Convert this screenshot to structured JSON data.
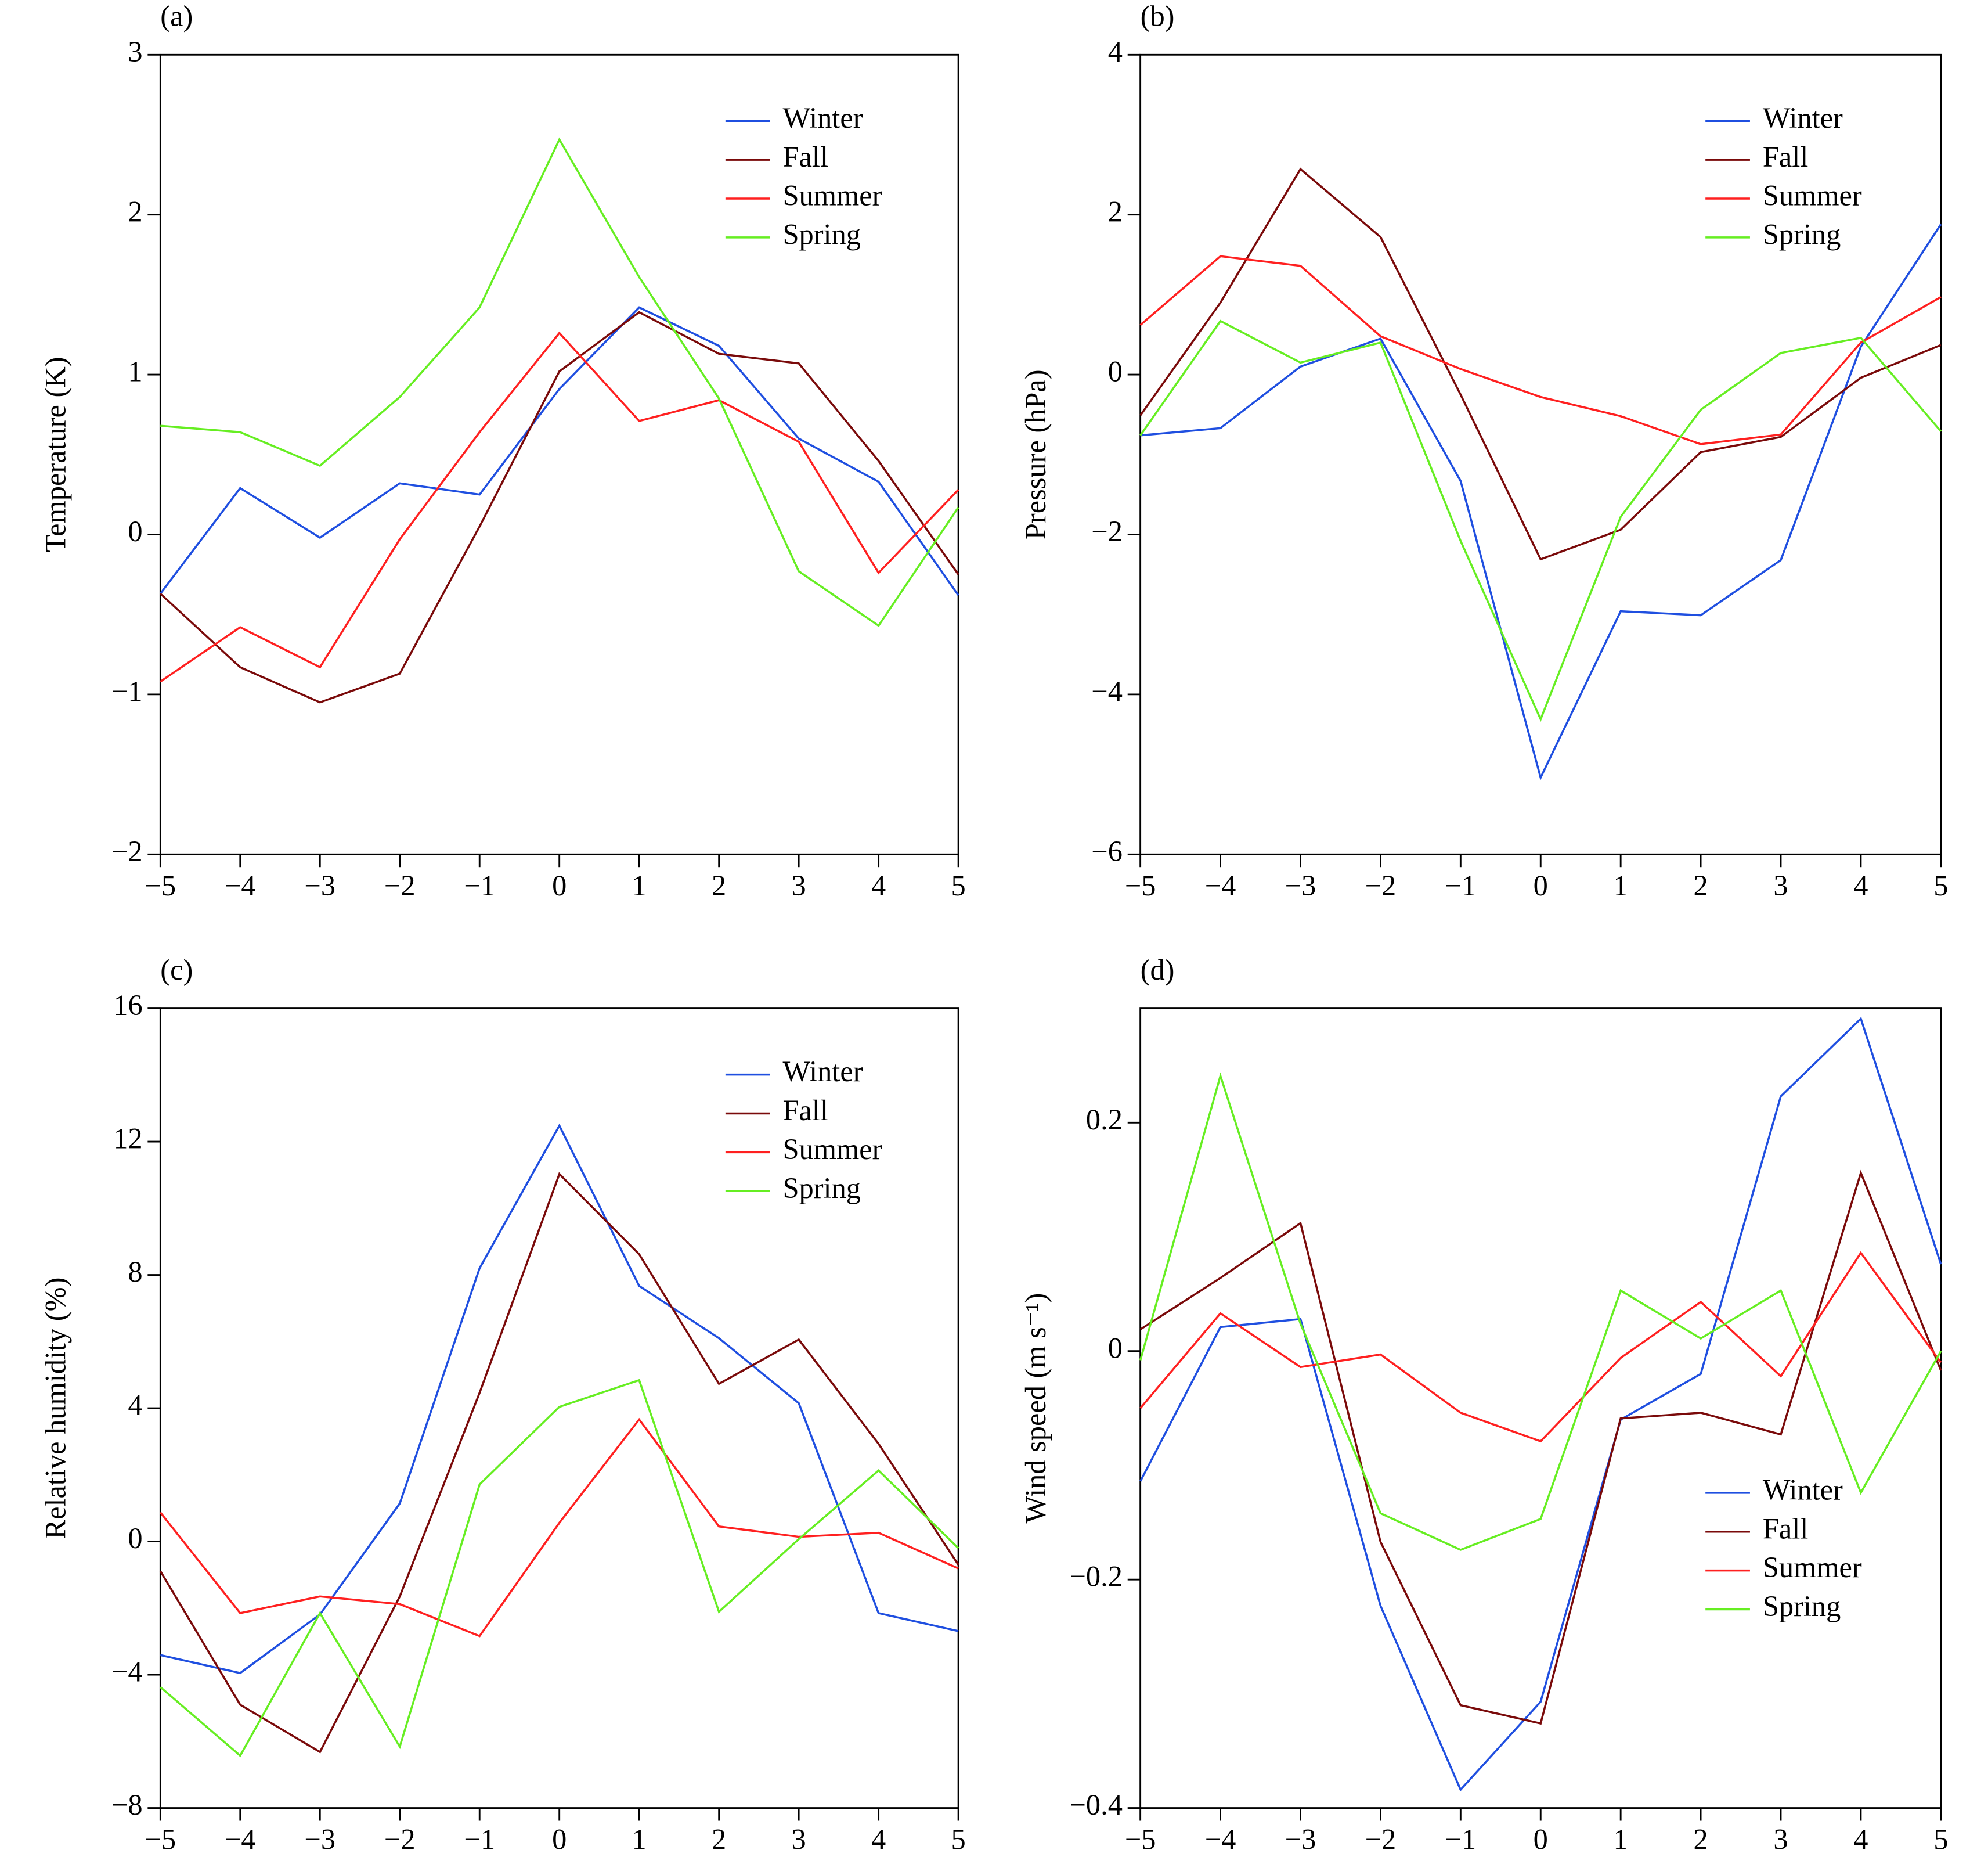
{
  "chart_data": [
    {
      "type": "line",
      "title": "(a)",
      "ylabel": "Temperature (K)",
      "legend": "upper right",
      "x": [
        -5,
        -4,
        -3,
        -2,
        -1,
        0,
        1,
        2,
        3,
        4,
        5
      ],
      "xlim": [
        -5,
        5
      ],
      "xticks": [
        {
          "value": -5,
          "label": "−5"
        },
        {
          "value": -4,
          "label": "−4"
        },
        {
          "value": -3,
          "label": "−3"
        },
        {
          "value": -2,
          "label": "−2"
        },
        {
          "value": -1,
          "label": "−1"
        },
        0,
        1,
        2,
        3,
        4,
        5
      ],
      "ylim": [
        -2,
        3
      ],
      "yticks": [
        {
          "value": -2,
          "label": "−2"
        },
        {
          "value": -1,
          "label": "−1"
        },
        0,
        1,
        2,
        3
      ],
      "series": [
        {
          "name": "Winter",
          "color": "#1f4fe0",
          "values": [
            -0.37,
            0.29,
            -0.02,
            0.32,
            0.25,
            0.91,
            1.42,
            1.18,
            0.6,
            0.33,
            -0.38
          ]
        },
        {
          "name": "Fall",
          "color": "#7a0a0a",
          "values": [
            -0.37,
            -0.83,
            -1.05,
            -0.87,
            0.05,
            1.02,
            1.39,
            1.13,
            1.07,
            0.46,
            -0.25
          ]
        },
        {
          "name": "Summer",
          "color": "#ff2020",
          "values": [
            -0.92,
            -0.58,
            -0.83,
            -0.03,
            0.64,
            1.26,
            0.71,
            0.84,
            0.58,
            -0.24,
            0.28
          ]
        },
        {
          "name": "Spring",
          "color": "#66ee22",
          "values": [
            0.68,
            0.64,
            0.43,
            0.86,
            1.42,
            2.47,
            1.61,
            0.85,
            -0.23,
            -0.57,
            0.17
          ]
        }
      ]
    },
    {
      "type": "line",
      "title": "(b)",
      "ylabel": "Pressure (hPa)",
      "legend": "upper right",
      "x": [
        -5,
        -4,
        -3,
        -2,
        -1,
        0,
        1,
        2,
        3,
        4,
        5
      ],
      "xlim": [
        -5,
        5
      ],
      "xticks": [
        {
          "value": -5,
          "label": "−5"
        },
        {
          "value": -4,
          "label": "−4"
        },
        {
          "value": -3,
          "label": "−3"
        },
        {
          "value": -2,
          "label": "−2"
        },
        {
          "value": -1,
          "label": "−1"
        },
        0,
        1,
        2,
        3,
        4,
        5
      ],
      "ylim": [
        -6,
        4
      ],
      "yticks": [
        {
          "value": -6,
          "label": "−6"
        },
        {
          "value": -4,
          "label": "−4"
        },
        {
          "value": -2,
          "label": "−2"
        },
        0,
        2,
        4
      ],
      "series": [
        {
          "name": "Winter",
          "color": "#1f4fe0",
          "values": [
            -0.76,
            -0.67,
            0.1,
            0.45,
            -1.33,
            -5.04,
            -2.96,
            -3.01,
            -2.32,
            0.35,
            1.88
          ]
        },
        {
          "name": "Fall",
          "color": "#7a0a0a",
          "values": [
            -0.51,
            0.9,
            2.57,
            1.72,
            -0.25,
            -2.31,
            -1.94,
            -0.97,
            -0.78,
            -0.04,
            0.37
          ]
        },
        {
          "name": "Summer",
          "color": "#ff2020",
          "values": [
            0.62,
            1.48,
            1.36,
            0.48,
            0.07,
            -0.28,
            -0.52,
            -0.87,
            -0.75,
            0.4,
            0.97
          ]
        },
        {
          "name": "Spring",
          "color": "#66ee22",
          "values": [
            -0.76,
            0.67,
            0.15,
            0.4,
            -2.08,
            -4.31,
            -1.78,
            -0.44,
            0.27,
            0.46,
            -0.71
          ]
        }
      ]
    },
    {
      "type": "line",
      "title": "(c)",
      "ylabel": "Relative humidity (%)",
      "legend": "upper right",
      "x": [
        -5,
        -4,
        -3,
        -2,
        -1,
        0,
        1,
        2,
        3,
        4,
        5
      ],
      "xlim": [
        -5,
        5
      ],
      "xticks": [
        {
          "value": -5,
          "label": "−5"
        },
        {
          "value": -4,
          "label": "−4"
        },
        {
          "value": -3,
          "label": "−3"
        },
        {
          "value": -2,
          "label": "−2"
        },
        {
          "value": -1,
          "label": "−1"
        },
        0,
        1,
        2,
        3,
        4,
        5
      ],
      "ylim": [
        -8,
        16
      ],
      "yticks": [
        {
          "value": -8,
          "label": "−8"
        },
        {
          "value": -4,
          "label": "−4"
        },
        0,
        4,
        8,
        12,
        16
      ],
      "series": [
        {
          "name": "Winter",
          "color": "#1f4fe0",
          "values": [
            -3.41,
            -3.95,
            -2.19,
            1.14,
            8.2,
            12.48,
            7.67,
            6.1,
            4.15,
            -2.15,
            -2.69
          ]
        },
        {
          "name": "Fall",
          "color": "#7a0a0a",
          "values": [
            -0.89,
            -4.9,
            -6.32,
            -1.65,
            4.46,
            11.03,
            8.62,
            4.73,
            6.06,
            2.93,
            -0.7
          ]
        },
        {
          "name": "Summer",
          "color": "#ff2020",
          "values": [
            0.87,
            -2.15,
            -1.65,
            -1.88,
            -2.84,
            0.56,
            3.66,
            0.45,
            0.14,
            0.26,
            -0.81
          ]
        },
        {
          "name": "Spring",
          "color": "#66ee22",
          "values": [
            -4.37,
            -6.43,
            -2.15,
            -6.16,
            1.71,
            4.04,
            4.84,
            -2.11,
            0.07,
            2.13,
            -0.2
          ]
        }
      ]
    },
    {
      "type": "line",
      "title": "(d)",
      "ylabel": "Wind speed (m s⁻¹)",
      "legend": "lower right",
      "x": [
        -5,
        -4,
        -3,
        -2,
        -1,
        0,
        1,
        2,
        3,
        4,
        5
      ],
      "xlim": [
        -5,
        5
      ],
      "xticks": [
        {
          "value": -5,
          "label": "−5"
        },
        {
          "value": -4,
          "label": "−4"
        },
        {
          "value": -3,
          "label": "−3"
        },
        {
          "value": -2,
          "label": "−2"
        },
        {
          "value": -1,
          "label": "−1"
        },
        0,
        1,
        2,
        3,
        4,
        5
      ],
      "ylim": [
        -0.4,
        0.3
      ],
      "yticks": [
        {
          "value": -0.4,
          "label": "−0.4"
        },
        {
          "value": -0.2,
          "label": "−0.2"
        },
        0,
        0.2
      ],
      "series": [
        {
          "name": "Winter",
          "color": "#1f4fe0",
          "values": [
            -0.114,
            0.021,
            0.028,
            -0.223,
            -0.384,
            -0.307,
            -0.06,
            -0.02,
            0.223,
            0.291,
            0.076
          ]
        },
        {
          "name": "Fall",
          "color": "#7a0a0a",
          "values": [
            0.019,
            0.064,
            0.112,
            -0.167,
            -0.31,
            -0.326,
            -0.059,
            -0.054,
            -0.073,
            0.156,
            -0.017
          ]
        },
        {
          "name": "Summer",
          "color": "#ff2020",
          "values": [
            -0.05,
            0.033,
            -0.014,
            -0.003,
            -0.054,
            -0.079,
            -0.006,
            0.043,
            -0.022,
            0.086,
            -0.01
          ]
        },
        {
          "name": "Spring",
          "color": "#66ee22",
          "values": [
            -0.008,
            0.241,
            0.024,
            -0.142,
            -0.174,
            -0.147,
            0.053,
            0.011,
            0.053,
            -0.124,
            0
          ]
        }
      ]
    }
  ]
}
